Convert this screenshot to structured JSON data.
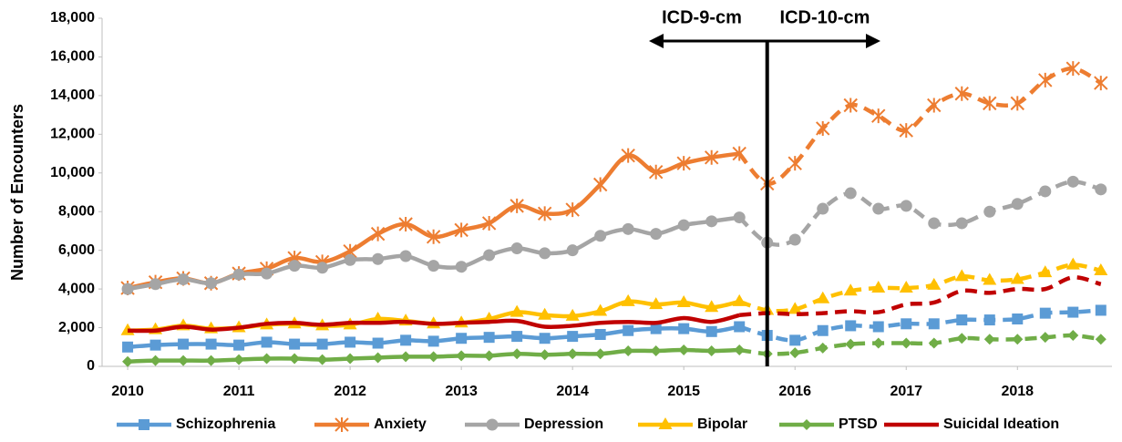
{
  "chart_data": {
    "type": "line",
    "y_label": "Number of Encounters",
    "annotations": [
      {
        "text": "ICD-9-cm"
      },
      {
        "text": "ICD-10-cm"
      }
    ],
    "divider_x": 2015.75,
    "x": [
      2010,
      2010.25,
      2010.5,
      2010.75,
      2011,
      2011.25,
      2011.5,
      2011.75,
      2012,
      2012.25,
      2012.5,
      2012.75,
      2013,
      2013.25,
      2013.5,
      2013.75,
      2014,
      2014.25,
      2014.5,
      2014.75,
      2015,
      2015.25,
      2015.5,
      2015.75,
      2016,
      2016.25,
      2016.5,
      2016.75,
      2017,
      2017.25,
      2017.5,
      2017.75,
      2018,
      2018.25,
      2018.5,
      2018.75
    ],
    "xlim": [
      2009.77,
      2018.85
    ],
    "xticks": [
      2010,
      2011,
      2012,
      2013,
      2014,
      2015,
      2016,
      2017,
      2018
    ],
    "ylim": [
      0,
      18000
    ],
    "yticks": [
      {
        "value": 0,
        "label": "0"
      },
      {
        "value": 2000,
        "label": "2,000"
      },
      {
        "value": 4000,
        "label": "4,000"
      },
      {
        "value": 6000,
        "label": "6,000"
      },
      {
        "value": 8000,
        "label": "8,000"
      },
      {
        "value": 10000,
        "label": "10,000"
      },
      {
        "value": 12000,
        "label": "12,000"
      },
      {
        "value": 14000,
        "label": "14,000"
      },
      {
        "value": 16000,
        "label": "16,000"
      },
      {
        "value": 18000,
        "label": "18,000"
      }
    ],
    "grid": false,
    "legend": "bottom",
    "series": [
      {
        "name": "Schizophrenia",
        "color": "#5b9bd5",
        "marker": "square",
        "values": [
          1000,
          1100,
          1150,
          1150,
          1100,
          1250,
          1150,
          1150,
          1250,
          1200,
          1350,
          1300,
          1450,
          1500,
          1550,
          1450,
          1550,
          1650,
          1850,
          1950,
          1950,
          1800,
          2050,
          1600,
          1350,
          1850,
          2100,
          2050,
          2200,
          2200,
          2400,
          2400,
          2450,
          2750,
          2800,
          2900
        ]
      },
      {
        "name": "Anxiety",
        "color": "#ed7d31",
        "marker": "asterisk",
        "values": [
          4050,
          4350,
          4550,
          4300,
          4800,
          5050,
          5600,
          5400,
          5950,
          6850,
          7350,
          6700,
          7050,
          7400,
          8300,
          7900,
          8100,
          9400,
          10900,
          10050,
          10500,
          10800,
          11000,
          9450,
          10500,
          12300,
          13500,
          12950,
          12200,
          13500,
          14100,
          13600,
          13600,
          14800,
          15400,
          14650
        ]
      },
      {
        "name": "Depression",
        "color": "#a5a5a5",
        "marker": "circle",
        "values": [
          4000,
          4250,
          4500,
          4300,
          4750,
          4800,
          5200,
          5100,
          5500,
          5550,
          5700,
          5200,
          5150,
          5750,
          6100,
          5850,
          6000,
          6750,
          7100,
          6850,
          7300,
          7500,
          7700,
          6400,
          6550,
          8150,
          8950,
          8150,
          8300,
          7400,
          7400,
          8000,
          8400,
          9050,
          9550,
          9150
        ]
      },
      {
        "name": "Bipolar",
        "color": "#ffc000",
        "marker": "triangle",
        "values": [
          1850,
          1900,
          2100,
          1950,
          2000,
          2150,
          2200,
          2100,
          2150,
          2450,
          2350,
          2200,
          2250,
          2450,
          2800,
          2650,
          2600,
          2850,
          3350,
          3200,
          3300,
          3050,
          3350,
          2900,
          2950,
          3500,
          3900,
          4050,
          4050,
          4200,
          4650,
          4450,
          4500,
          4850,
          5250,
          4950
        ]
      },
      {
        "name": "PTSD",
        "color": "#70ad47",
        "marker": "diamond",
        "values": [
          250,
          300,
          300,
          300,
          350,
          400,
          400,
          350,
          400,
          450,
          500,
          500,
          550,
          550,
          650,
          600,
          650,
          650,
          800,
          800,
          850,
          800,
          850,
          650,
          700,
          950,
          1150,
          1200,
          1200,
          1200,
          1450,
          1400,
          1400,
          1500,
          1600,
          1400
        ]
      },
      {
        "name": "Suicidal Ideation",
        "color": "#c00000",
        "marker": "none",
        "values": [
          1850,
          1850,
          2050,
          1900,
          2000,
          2200,
          2250,
          2150,
          2250,
          2250,
          2300,
          2200,
          2250,
          2300,
          2350,
          2050,
          2100,
          2250,
          2300,
          2250,
          2500,
          2300,
          2650,
          2750,
          2700,
          2750,
          2850,
          2800,
          3200,
          3300,
          3900,
          3800,
          4000,
          4000,
          4600,
          4250
        ]
      }
    ]
  }
}
